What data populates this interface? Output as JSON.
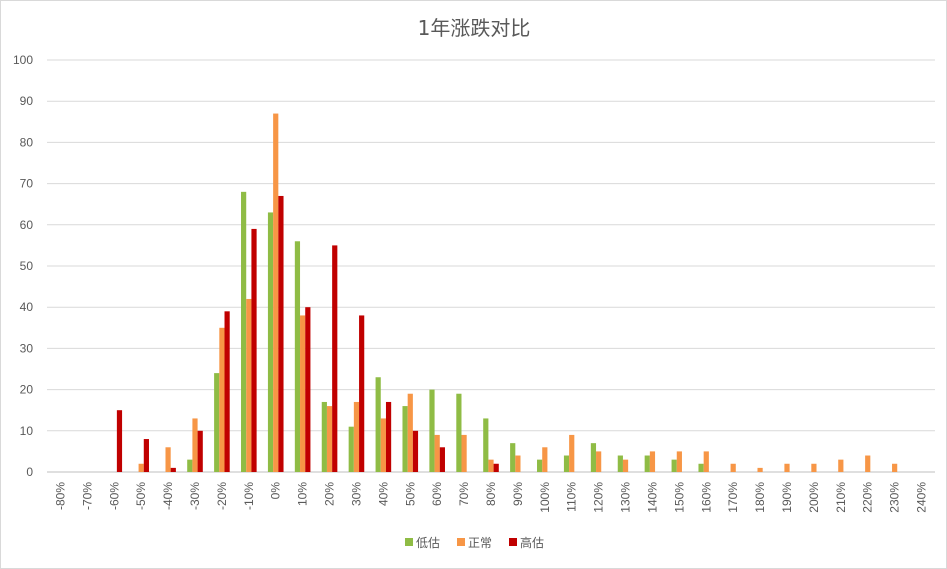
{
  "chart_data": {
    "type": "bar",
    "title": "1年涨跌对比",
    "xlabel": "",
    "ylabel": "",
    "ylim": [
      0,
      100
    ],
    "yticks": [
      0,
      10,
      20,
      30,
      40,
      50,
      60,
      70,
      80,
      90,
      100
    ],
    "categories": [
      "-80%",
      "-70%",
      "-60%",
      "-50%",
      "-40%",
      "-30%",
      "-20%",
      "-10%",
      "0%",
      "10%",
      "20%",
      "30%",
      "40%",
      "50%",
      "60%",
      "70%",
      "80%",
      "90%",
      "100%",
      "110%",
      "120%",
      "130%",
      "140%",
      "150%",
      "160%",
      "170%",
      "180%",
      "190%",
      "200%",
      "210%",
      "220%",
      "230%",
      "240%"
    ],
    "series": [
      {
        "name": "低估",
        "color": "#8fbc45",
        "values": [
          0,
          0,
          0,
          0,
          0,
          3,
          24,
          68,
          63,
          56,
          17,
          11,
          23,
          16,
          20,
          19,
          13,
          7,
          3,
          4,
          7,
          4,
          4,
          3,
          2,
          0,
          0,
          0,
          0,
          0,
          0,
          0,
          0
        ]
      },
      {
        "name": "正常",
        "color": "#f79646",
        "values": [
          0,
          0,
          0,
          2,
          6,
          13,
          35,
          42,
          87,
          38,
          16,
          17,
          13,
          19,
          9,
          9,
          3,
          4,
          6,
          9,
          5,
          3,
          5,
          5,
          5,
          2,
          1,
          2,
          2,
          3,
          4,
          2,
          0
        ]
      },
      {
        "name": "高估",
        "color": "#c00000",
        "values": [
          0,
          0,
          15,
          8,
          1,
          10,
          39,
          59,
          67,
          40,
          55,
          38,
          17,
          10,
          6,
          0,
          2,
          0,
          0,
          0,
          0,
          0,
          0,
          0,
          0,
          0,
          0,
          0,
          0,
          0,
          0,
          0,
          0
        ]
      }
    ],
    "grid": true,
    "legend": "bottom"
  }
}
